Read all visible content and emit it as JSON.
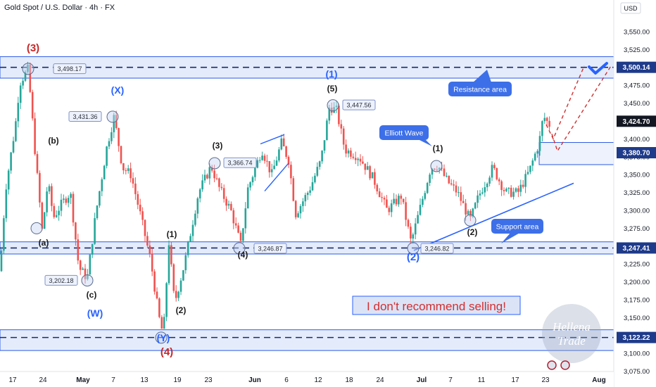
{
  "header": {
    "title": "Gold Spot / U.S. Dollar · 4h · FX"
  },
  "price_axis": {
    "currency": "USD",
    "ticks": [
      "3,550.00",
      "3,525.00",
      "3,500.00",
      "3,475.00",
      "3,450.00",
      "3,425.00",
      "3,400.00",
      "3,375.00",
      "3,350.00",
      "3,325.00",
      "3,300.00",
      "3,275.00",
      "3,250.00",
      "3,225.00",
      "3,200.00",
      "3,175.00",
      "3,150.00",
      "3,125.00",
      "3,100.00",
      "3,075.00"
    ],
    "badges": [
      {
        "label": "3,500.14",
        "value": 3500.14,
        "color": "#1e3a8a"
      },
      {
        "label": "3,424.70",
        "value": 3424.7,
        "color": "#131722"
      },
      {
        "label": "3,380.70",
        "value": 3380.7,
        "color": "#1e3a8a"
      },
      {
        "label": "3,247.41",
        "value": 3247.41,
        "color": "#1e3a8a"
      },
      {
        "label": "3,122.22",
        "value": 3122.22,
        "color": "#1e3a8a"
      }
    ]
  },
  "time_axis": {
    "ticks": [
      "17",
      "24",
      "May",
      "7",
      "13",
      "19",
      "23",
      "Jun",
      "6",
      "12",
      "18",
      "24",
      "Jul",
      "7",
      "11",
      "17",
      "23",
      "Aug"
    ]
  },
  "colors": {
    "up": "#26a69a",
    "down": "#ef5350",
    "zone": "#dbe5fb",
    "zone_border": "#2d5be3",
    "wave_blue": "#2962ff",
    "wave_red": "#c62828",
    "callout": "#3d6fe8"
  },
  "chart_data": {
    "type": "candlestick",
    "ylim": [
      3065,
      3570
    ],
    "zones": [
      {
        "label": "Resistance area",
        "from": 3485,
        "to": 3515,
        "line": 3500.14
      },
      {
        "label": "Support area",
        "from": 3239,
        "to": 3256,
        "line": 3247.41
      },
      {
        "label": "",
        "from": 3104,
        "to": 3133,
        "line": 3122.22
      }
    ],
    "price_labels": [
      {
        "text": "3,498.17",
        "value": 3498.17
      },
      {
        "text": "3,431.36",
        "value": 3431.36
      },
      {
        "text": "3,366.74",
        "value": 3366.74
      },
      {
        "text": "3,447.56",
        "value": 3447.56
      },
      {
        "text": "3,246.87",
        "value": 3246.87
      },
      {
        "text": "3,246.82",
        "value": 3246.82
      },
      {
        "text": "3,202.18",
        "value": 3202.18
      }
    ],
    "wave_labels": [
      {
        "text": "(3)",
        "color": "red"
      },
      {
        "text": "(X)",
        "color": "blue"
      },
      {
        "text": "(b)",
        "color": "black"
      },
      {
        "text": "(a)",
        "color": "black"
      },
      {
        "text": "(c)",
        "color": "black"
      },
      {
        "text": "(W)",
        "color": "blue"
      },
      {
        "text": "(Y)",
        "color": "blue"
      },
      {
        "text": "(4)",
        "color": "red"
      },
      {
        "text": "(1)",
        "color": "black"
      },
      {
        "text": "(2)",
        "color": "black"
      },
      {
        "text": "(3)",
        "color": "black"
      },
      {
        "text": "(4)",
        "color": "black"
      },
      {
        "text": "(1)",
        "color": "blue"
      },
      {
        "text": "(5)",
        "color": "black"
      },
      {
        "text": "(1)",
        "color": "black"
      },
      {
        "text": "(2)",
        "color": "blue"
      },
      {
        "text": "(2)",
        "color": "black"
      }
    ],
    "callouts": [
      "Resistance area",
      "Elliott Wave",
      "Support area"
    ],
    "banner": "I don't recommend selling!",
    "watermark": [
      "Hellena",
      "Trade"
    ]
  }
}
